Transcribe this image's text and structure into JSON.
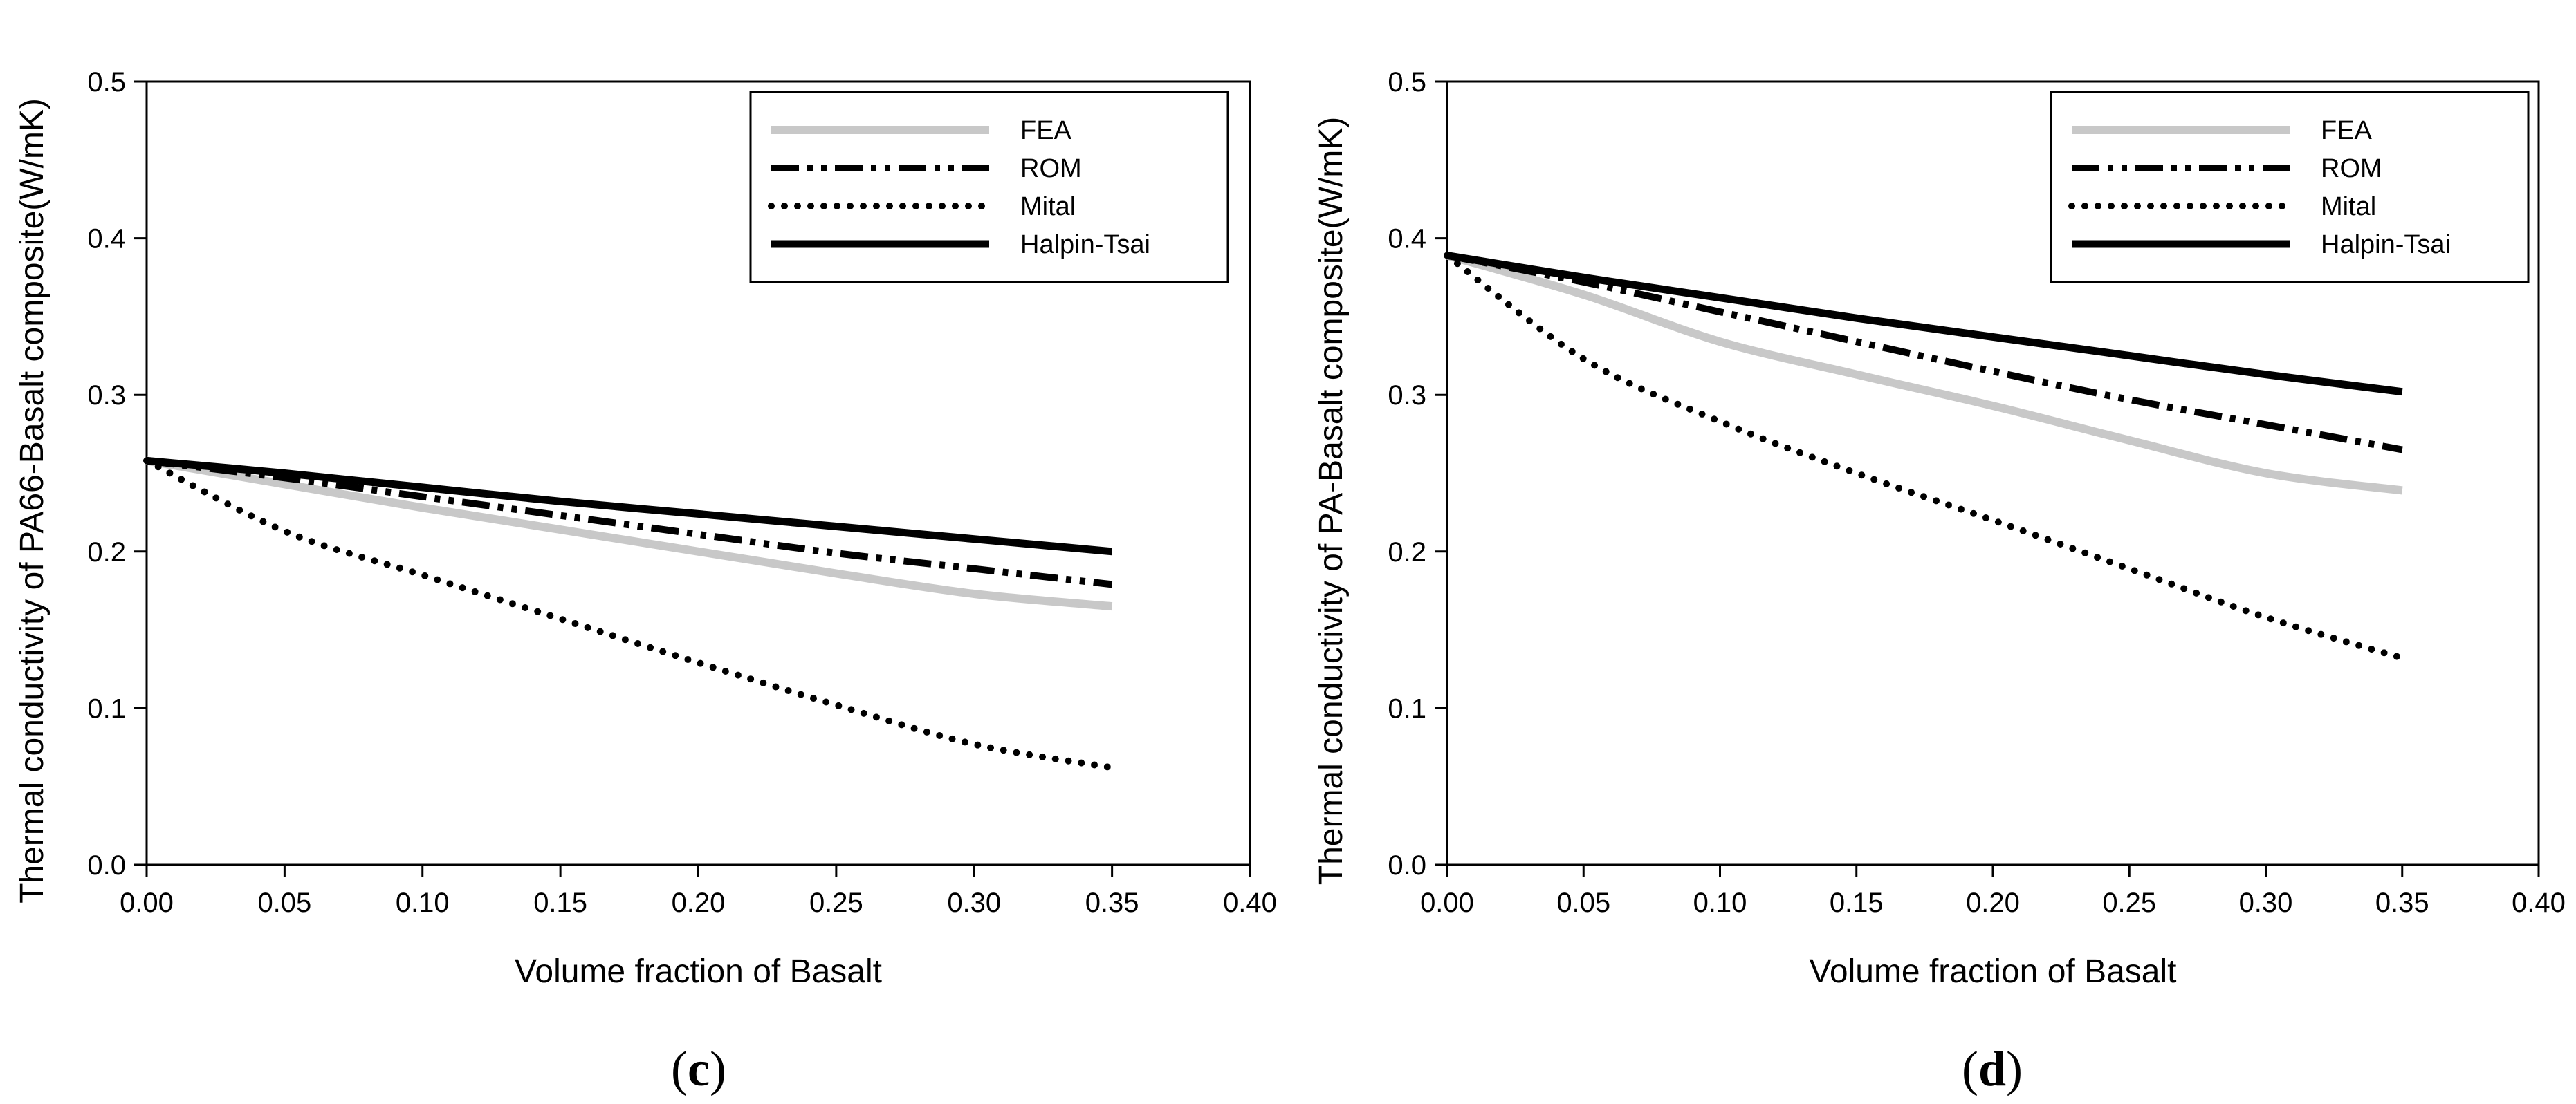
{
  "chart_data": [
    {
      "panel": "c",
      "type": "line",
      "panel_label_open": "(",
      "panel_label_letter": "c",
      "panel_label_close": ")",
      "xlabel": "Volume fraction of Basalt",
      "ylabel": "Thermal conductivity of PA66-Basalt composite(W/mK)",
      "xlim": [
        0,
        0.4
      ],
      "ylim": [
        0,
        0.5
      ],
      "xticks": [
        "0.00",
        "0.05",
        "0.10",
        "0.15",
        "0.20",
        "0.25",
        "0.30",
        "0.35",
        "0.40"
      ],
      "yticks": [
        "0.0",
        "0.1",
        "0.2",
        "0.3",
        "0.4",
        "0.5"
      ],
      "grid": false,
      "legend_position": "top-right",
      "x": [
        0,
        0.05,
        0.1,
        0.15,
        0.2,
        0.25,
        0.3,
        0.35
      ],
      "series": [
        {
          "name": "FEA",
          "style": "solid-gray",
          "values": [
            0.258,
            0.243,
            0.228,
            0.214,
            0.2,
            0.186,
            0.173,
            0.165
          ]
        },
        {
          "name": "ROM",
          "style": "dash-dot-dot",
          "values": [
            0.258,
            0.247,
            0.235,
            0.223,
            0.211,
            0.199,
            0.189,
            0.179
          ]
        },
        {
          "name": "Mital",
          "style": "dotted",
          "values": [
            0.258,
            0.213,
            0.185,
            0.157,
            0.129,
            0.102,
            0.077,
            0.062
          ]
        },
        {
          "name": "Halpin-Tsai",
          "style": "solid-black",
          "values": [
            0.258,
            0.25,
            0.241,
            0.232,
            0.224,
            0.216,
            0.208,
            0.2
          ]
        }
      ]
    },
    {
      "panel": "d",
      "type": "line",
      "panel_label_open": "(",
      "panel_label_letter": "d",
      "panel_label_close": ")",
      "xlabel": "Volume fraction of Basalt",
      "ylabel": "Thermal conductivity of PA-Basalt composite(W/mK)",
      "xlim": [
        0,
        0.4
      ],
      "ylim": [
        0,
        0.5
      ],
      "xticks": [
        "0.00",
        "0.05",
        "0.10",
        "0.15",
        "0.20",
        "0.25",
        "0.30",
        "0.35",
        "0.40"
      ],
      "yticks": [
        "0.0",
        "0.1",
        "0.2",
        "0.3",
        "0.4",
        "0.5"
      ],
      "grid": false,
      "legend_position": "top-right",
      "x": [
        0,
        0.05,
        0.1,
        0.15,
        0.2,
        0.25,
        0.3,
        0.35
      ],
      "series": [
        {
          "name": "FEA",
          "style": "solid-gray",
          "values": [
            0.389,
            0.364,
            0.334,
            0.313,
            0.293,
            0.271,
            0.25,
            0.239
          ]
        },
        {
          "name": "ROM",
          "style": "dash-dot-dot",
          "values": [
            0.389,
            0.372,
            0.353,
            0.334,
            0.315,
            0.297,
            0.281,
            0.265
          ]
        },
        {
          "name": "Mital",
          "style": "dotted",
          "values": [
            0.389,
            0.323,
            0.283,
            0.25,
            0.22,
            0.189,
            0.158,
            0.132
          ]
        },
        {
          "name": "Halpin-Tsai",
          "style": "solid-black",
          "values": [
            0.389,
            0.375,
            0.362,
            0.349,
            0.337,
            0.325,
            0.313,
            0.302
          ]
        }
      ]
    }
  ]
}
